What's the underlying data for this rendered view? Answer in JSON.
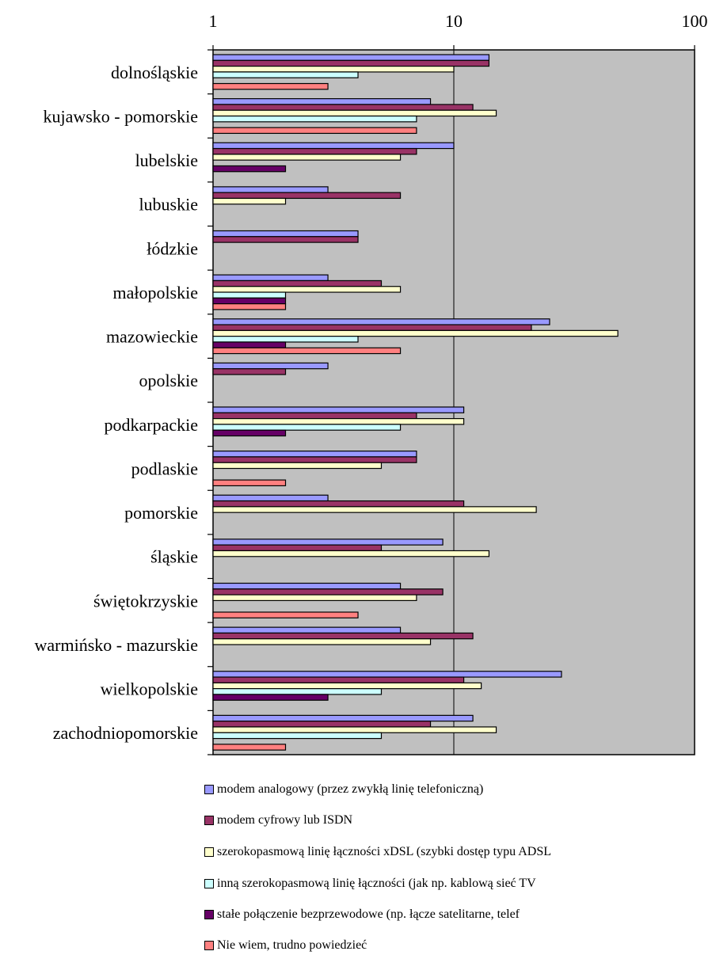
{
  "chart_data": {
    "type": "bar",
    "orientation": "horizontal",
    "x_scale": "log",
    "xlim": [
      1,
      100
    ],
    "x_ticks": [
      "1",
      "10",
      "100"
    ],
    "grid": true,
    "legend_position": "bottom",
    "plot_background": "#c0c0c0",
    "categories": [
      "dolnośląskie",
      "kujawsko - pomorskie",
      "lubelskie",
      "lubuskie",
      "łódzkie",
      "małopolskie",
      "mazowieckie",
      "opolskie",
      "podkarpackie",
      "podlaskie",
      "pomorskie",
      "śląskie",
      "świętokrzyskie",
      "warmińsko - mazurskie",
      "wielkopolskie",
      "zachodniopomorskie"
    ],
    "series": [
      {
        "name": "modem analogowy (przez zwykłą linię telefoniczną)",
        "color": "#9999ff",
        "values": [
          14,
          8,
          10,
          3,
          4,
          3,
          25,
          3,
          11,
          7,
          3,
          9,
          6,
          6,
          28,
          12
        ]
      },
      {
        "name": "modem cyfrowy lub ISDN",
        "color": "#993366",
        "values": [
          14,
          12,
          7,
          6,
          4,
          5,
          21,
          2,
          7,
          7,
          11,
          5,
          9,
          12,
          11,
          8
        ]
      },
      {
        "name": "szerokopasmową linię łączności xDSL (szybki dostęp typu ADSL",
        "color": "#ffffcc",
        "values": [
          10,
          15,
          6,
          2,
          null,
          6,
          48,
          null,
          11,
          5,
          22,
          14,
          7,
          8,
          13,
          15
        ]
      },
      {
        "name": "inną szerokopasmową linię łączności (jak np. kablową sieć TV",
        "color": "#ccffff",
        "values": [
          4,
          7,
          null,
          null,
          null,
          2,
          4,
          null,
          6,
          null,
          null,
          null,
          null,
          null,
          5,
          5
        ]
      },
      {
        "name": "stałe połączenie bezprzewodowe (np. łącze satelitarne, telef",
        "color": "#660066",
        "values": [
          null,
          null,
          2,
          null,
          null,
          2,
          2,
          null,
          2,
          null,
          null,
          null,
          null,
          null,
          3,
          null
        ]
      },
      {
        "name": "Nie wiem, trudno powiedzieć",
        "color": "#ff8080",
        "values": [
          3,
          7,
          null,
          null,
          null,
          2,
          6,
          null,
          null,
          2,
          null,
          null,
          4,
          null,
          null,
          2
        ]
      }
    ]
  }
}
